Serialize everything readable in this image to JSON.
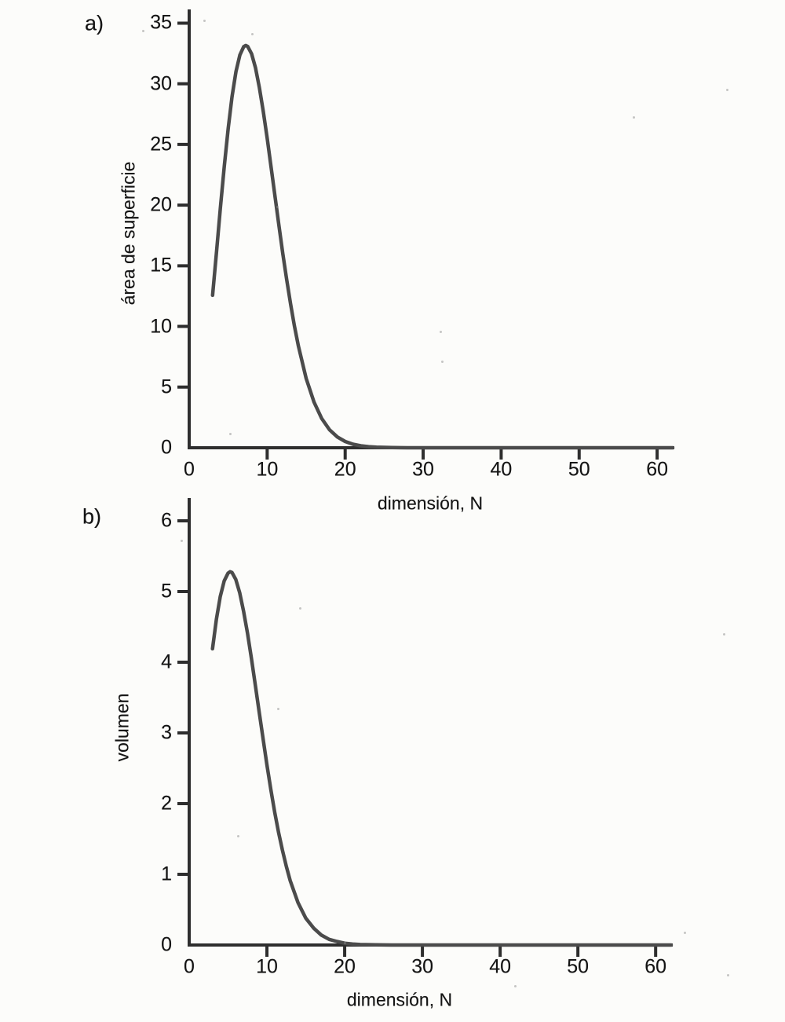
{
  "chart_data": [
    {
      "id": "a",
      "type": "line",
      "panel_label": "a)",
      "xlabel": "dimensión, N",
      "ylabel": "área de superficie",
      "xlim": [
        0,
        62
      ],
      "ylim": [
        0,
        36
      ],
      "x_ticks": [
        0,
        10,
        20,
        30,
        40,
        50,
        60
      ],
      "y_ticks": [
        0,
        5,
        10,
        15,
        20,
        25,
        30,
        35
      ],
      "grid": false,
      "legend": null,
      "line_color": "#4b4b4b",
      "peak": {
        "x": 7.3,
        "y": 33.2
      },
      "points": [
        [
          3,
          12.57
        ],
        [
          3.5,
          16.13
        ],
        [
          4,
          19.74
        ],
        [
          4.5,
          23.19
        ],
        [
          5,
          26.32
        ],
        [
          5.5,
          28.95
        ],
        [
          6,
          31.01
        ],
        [
          6.5,
          32.38
        ],
        [
          7,
          33.07
        ],
        [
          7.26,
          33.16
        ],
        [
          7.5,
          33.08
        ],
        [
          8,
          32.47
        ],
        [
          8.5,
          31.31
        ],
        [
          9,
          29.69
        ],
        [
          9.5,
          27.71
        ],
        [
          10,
          25.5
        ],
        [
          10.5,
          23.14
        ],
        [
          11,
          20.73
        ],
        [
          11.5,
          18.33
        ],
        [
          12,
          16.02
        ],
        [
          12.5,
          13.86
        ],
        [
          13,
          11.84
        ],
        [
          13.5,
          10.02
        ],
        [
          14,
          8.39
        ],
        [
          15,
          5.72
        ],
        [
          16,
          3.77
        ],
        [
          17,
          2.4
        ],
        [
          18,
          1.48
        ],
        [
          19,
          0.89
        ],
        [
          20,
          0.52
        ],
        [
          21,
          0.29
        ],
        [
          22,
          0.16
        ],
        [
          23,
          0.09
        ],
        [
          24,
          0.05
        ],
        [
          26,
          0.012
        ],
        [
          28,
          0.003
        ],
        [
          30,
          0.001
        ],
        [
          35,
          0
        ],
        [
          40,
          0
        ],
        [
          45,
          0
        ],
        [
          50,
          0
        ],
        [
          55,
          0
        ],
        [
          60,
          0
        ],
        [
          62,
          0
        ]
      ]
    },
    {
      "id": "b",
      "type": "line",
      "panel_label": "b)",
      "xlabel": "dimensión, N",
      "ylabel": "volumen",
      "xlim": [
        0,
        62
      ],
      "ylim": [
        0,
        6.3
      ],
      "x_ticks": [
        0,
        10,
        20,
        30,
        40,
        50,
        60
      ],
      "y_ticks": [
        0,
        1,
        2,
        3,
        4,
        5,
        6
      ],
      "grid": false,
      "legend": null,
      "line_color": "#4b4b4b",
      "peak": {
        "x": 5.26,
        "y": 5.28
      },
      "points": [
        [
          3,
          4.19
        ],
        [
          3.5,
          4.61
        ],
        [
          4,
          4.93
        ],
        [
          4.5,
          5.15
        ],
        [
          5,
          5.26
        ],
        [
          5.26,
          5.28
        ],
        [
          5.5,
          5.27
        ],
        [
          6,
          5.17
        ],
        [
          6.5,
          4.98
        ],
        [
          7,
          4.72
        ],
        [
          7.5,
          4.41
        ],
        [
          8,
          4.06
        ],
        [
          8.5,
          3.68
        ],
        [
          9,
          3.3
        ],
        [
          9.5,
          2.92
        ],
        [
          10,
          2.55
        ],
        [
          10.5,
          2.2
        ],
        [
          11,
          1.88
        ],
        [
          11.5,
          1.59
        ],
        [
          12,
          1.34
        ],
        [
          12.5,
          1.11
        ],
        [
          13,
          0.91
        ],
        [
          14,
          0.6
        ],
        [
          15,
          0.38
        ],
        [
          16,
          0.24
        ],
        [
          17,
          0.14
        ],
        [
          18,
          0.08
        ],
        [
          19,
          0.05
        ],
        [
          20,
          0.026
        ],
        [
          21,
          0.014
        ],
        [
          22,
          0.007
        ],
        [
          24,
          0.002
        ],
        [
          26,
          0
        ],
        [
          30,
          0
        ],
        [
          35,
          0
        ],
        [
          40,
          0
        ],
        [
          45,
          0
        ],
        [
          50,
          0
        ],
        [
          55,
          0
        ],
        [
          60,
          0
        ],
        [
          62,
          0
        ]
      ]
    }
  ]
}
